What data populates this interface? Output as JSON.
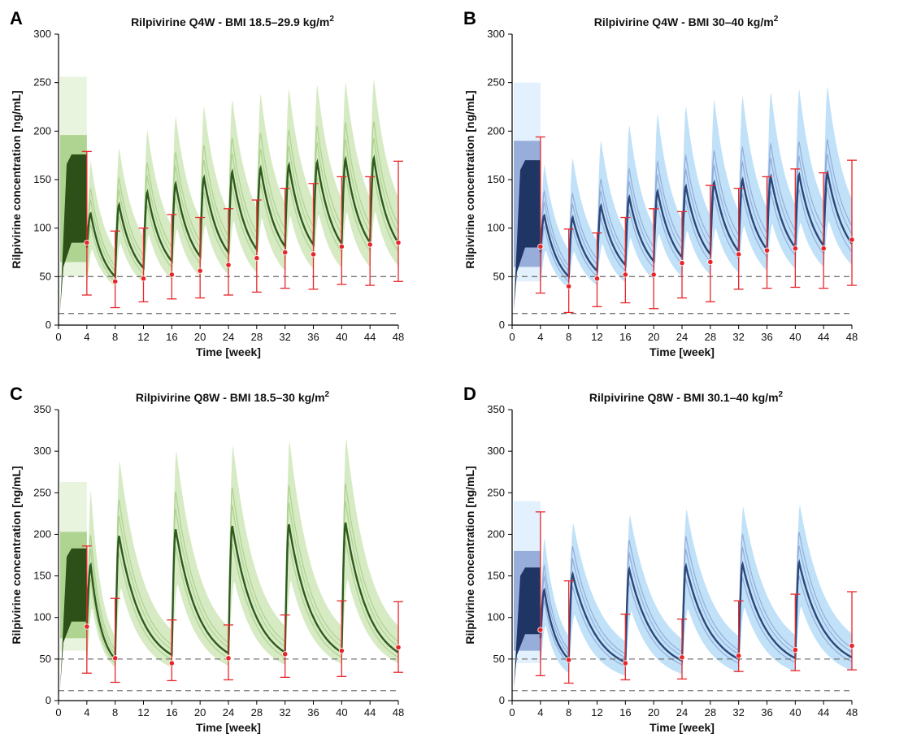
{
  "figure": {
    "dashed_lines": [
      50,
      12
    ],
    "series_colors": {
      "green": {
        "main": "#2f5a1f",
        "dark": "#2d5019",
        "band": "#cfe6b8",
        "light": "#a9d08a",
        "pale": "#e4f1d7"
      },
      "blue": {
        "main": "#2e4778",
        "dark": "#1f3564",
        "band": "#b5dcf7",
        "light": "#8fa6d6",
        "pale": "#dbeefc"
      }
    },
    "observed_color": "#e8262a"
  },
  "chart_data": [
    {
      "letter": "A",
      "type": "line",
      "title": "Rilpivirine Q4W - BMI 18.5–29.9 kg/m",
      "title_sup": "2",
      "xlabel": "Time [week]",
      "ylabel": "Rilpivirine concentration [ng/mL]",
      "xlim": [
        0,
        48
      ],
      "ylim": [
        0,
        300
      ],
      "xticks": [
        0,
        4,
        8,
        12,
        16,
        20,
        24,
        28,
        32,
        36,
        40,
        44,
        48
      ],
      "yticks": [
        0,
        50,
        100,
        150,
        200,
        250,
        300
      ],
      "color_scheme": "green",
      "lead_in": {
        "from_week": 0,
        "to_week": 4,
        "trough": 80,
        "peak": 176
      },
      "injections": [
        4,
        8,
        12,
        16,
        20,
        24,
        28,
        32,
        36,
        40,
        44
      ],
      "median_peaks": [
        115,
        124,
        137,
        146,
        152,
        158,
        162,
        165,
        168,
        171,
        172
      ],
      "median_troughs": [
        50,
        59,
        66,
        71,
        75,
        78,
        81,
        83,
        84,
        85,
        85
      ],
      "band_peaks": [
        168,
        182,
        200,
        215,
        225,
        232,
        238,
        243,
        247,
        250,
        253
      ],
      "band_troughs": [
        40,
        44,
        47,
        50,
        52,
        54,
        56,
        58,
        59,
        60,
        61
      ],
      "observed": {
        "x": [
          4,
          8,
          12,
          16,
          20,
          24,
          28,
          32,
          36,
          40,
          44,
          48
        ],
        "median": [
          85,
          45,
          48,
          52,
          56,
          62,
          69,
          75,
          73,
          81,
          83,
          85
        ],
        "low": [
          31,
          18,
          24,
          27,
          28,
          31,
          34,
          38,
          37,
          42,
          41,
          45
        ],
        "high": [
          179,
          97,
          100,
          114,
          111,
          120,
          129,
          141,
          146,
          153,
          153,
          169
        ]
      }
    },
    {
      "letter": "B",
      "type": "line",
      "title": "Rilpivirine Q4W - BMI 30–40 kg/m",
      "title_sup": "2",
      "xlabel": "Time [week]",
      "ylabel": "Rilpivirine concentration [ng/mL]",
      "xlim": [
        0,
        48
      ],
      "ylim": [
        0,
        300
      ],
      "xticks": [
        0,
        4,
        8,
        12,
        16,
        20,
        24,
        28,
        32,
        36,
        40,
        44,
        48
      ],
      "yticks": [
        0,
        50,
        100,
        150,
        200,
        250,
        300
      ],
      "color_scheme": "blue",
      "lead_in": {
        "from_week": 0,
        "to_week": 4,
        "trough": 75,
        "peak": 170
      },
      "injections": [
        4,
        8,
        12,
        16,
        20,
        24,
        28,
        32,
        36,
        40,
        44
      ],
      "median_peaks": [
        113,
        111,
        123,
        132,
        138,
        143,
        147,
        150,
        153,
        155,
        157
      ],
      "median_troughs": [
        50,
        56,
        62,
        66,
        70,
        73,
        76,
        78,
        80,
        82,
        84
      ],
      "band_peaks": [
        165,
        172,
        190,
        206,
        217,
        225,
        232,
        236,
        240,
        243,
        246
      ],
      "band_troughs": [
        38,
        41,
        44,
        47,
        50,
        52,
        54,
        56,
        58,
        60,
        62
      ],
      "observed": {
        "x": [
          4,
          8,
          12,
          16,
          20,
          24,
          28,
          32,
          36,
          40,
          44,
          48
        ],
        "median": [
          81,
          40,
          48,
          52,
          52,
          64,
          65,
          73,
          77,
          79,
          79,
          88
        ],
        "low": [
          33,
          13,
          19,
          23,
          17,
          28,
          24,
          37,
          38,
          39,
          38,
          41
        ],
        "high": [
          194,
          99,
          95,
          111,
          120,
          117,
          144,
          141,
          153,
          161,
          157,
          170
        ]
      }
    },
    {
      "letter": "C",
      "type": "line",
      "title": "Rilpivirine Q8W - BMI 18.5–30 kg/m",
      "title_sup": "2",
      "xlabel": "Time [week]",
      "ylabel": "Rilpivirine concentration [ng/mL]",
      "xlim": [
        0,
        48
      ],
      "ylim": [
        0,
        350
      ],
      "xticks": [
        0,
        4,
        8,
        12,
        16,
        20,
        24,
        28,
        32,
        36,
        40,
        44,
        48
      ],
      "yticks": [
        0,
        50,
        100,
        150,
        200,
        250,
        300,
        350
      ],
      "color_scheme": "green",
      "lead_in": {
        "from_week": 0,
        "to_week": 4,
        "trough": 90,
        "peak": 183
      },
      "injections": [
        4,
        8,
        16,
        24,
        32,
        40
      ],
      "median_peaks": [
        163,
        198,
        206,
        210,
        212,
        214
      ],
      "median_troughs": [
        50,
        55,
        57,
        58,
        58,
        58
      ],
      "band_peaks": [
        252,
        288,
        300,
        307,
        312,
        315
      ],
      "band_troughs": [
        40,
        40,
        42,
        43,
        44,
        45
      ],
      "observed": {
        "x": [
          4,
          8,
          16,
          24,
          32,
          40,
          48
        ],
        "median": [
          89,
          51,
          45,
          51,
          56,
          60,
          64
        ],
        "low": [
          33,
          22,
          24,
          25,
          28,
          29,
          34
        ],
        "high": [
          186,
          123,
          97,
          91,
          103,
          120,
          119
        ]
      }
    },
    {
      "letter": "D",
      "type": "line",
      "title": "Rilpivirine Q8W - BMI 30.1–40 kg/m",
      "title_sup": "2",
      "xlabel": "Time [week]",
      "ylabel": "Rilpivirine concentration [ng/mL]",
      "xlim": [
        0,
        48
      ],
      "ylim": [
        0,
        350
      ],
      "xticks": [
        0,
        4,
        8,
        12,
        16,
        20,
        24,
        28,
        32,
        36,
        40,
        44,
        48
      ],
      "yticks": [
        0,
        50,
        100,
        150,
        200,
        250,
        300,
        350
      ],
      "color_scheme": "blue",
      "lead_in": {
        "from_week": 0,
        "to_week": 4,
        "trough": 75,
        "peak": 160
      },
      "injections": [
        4,
        8,
        16,
        24,
        32,
        40
      ],
      "median_peaks": [
        133,
        152,
        158,
        162,
        164,
        166
      ],
      "median_troughs": [
        50,
        46,
        48,
        50,
        51,
        52
      ],
      "band_peaks": [
        195,
        213,
        223,
        230,
        233,
        235
      ],
      "band_troughs": [
        33,
        30,
        32,
        34,
        35,
        36
      ],
      "observed": {
        "x": [
          4,
          8,
          16,
          24,
          32,
          40,
          48
        ],
        "median": [
          85,
          49,
          45,
          52,
          54,
          61,
          66
        ],
        "low": [
          30,
          21,
          25,
          26,
          35,
          36,
          37
        ],
        "high": [
          227,
          144,
          104,
          98,
          120,
          128,
          131
        ]
      }
    }
  ]
}
